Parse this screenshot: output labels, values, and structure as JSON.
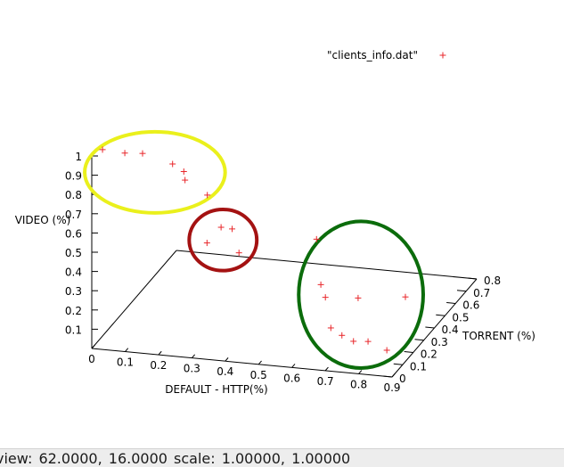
{
  "legend_label": "\"clients_info.dat\"",
  "status": "view: 62.0000, 16.0000 scale: 1.00000, 1.00000",
  "colors": {
    "points": "#e8262a",
    "cluster_yellow": "#eaf01c",
    "cluster_red": "#a41212",
    "cluster_green": "#0b6c0b",
    "axes": "#000000"
  },
  "chart_data": {
    "type": "scatter",
    "dimensions": 3,
    "legend": "\"clients_info.dat\"",
    "legend_placement": "top-right",
    "xlabel": "DEFAULT - HTTP(%)",
    "ylabel": "TORRENT (%)",
    "zlabel": "VIDEO (%)",
    "xlim": [
      0,
      0.9
    ],
    "ylim": [
      0,
      0.8
    ],
    "zlim": [
      0,
      1
    ],
    "x_ticks": [
      "0",
      "0.1",
      "0.2",
      "0.3",
      "0.4",
      "0.5",
      "0.6",
      "0.7",
      "0.8",
      "0.9"
    ],
    "y_ticks": [
      "0",
      "0.1",
      "0.2",
      "0.3",
      "0.4",
      "0.5",
      "0.6",
      "0.7",
      "0.8"
    ],
    "z_ticks": [
      "0.1",
      "0.2",
      "0.3",
      "0.4",
      "0.5",
      "0.6",
      "0.7",
      "0.8",
      "0.9",
      "1"
    ],
    "grid": false,
    "view": {
      "rot_x": 62,
      "rot_z": 16
    },
    "points": [
      {
        "x": 0.01,
        "y": 0.07,
        "z": 0.99
      },
      {
        "x": 0.08,
        "y": 0.06,
        "z": 0.99
      },
      {
        "x": 0.13,
        "y": 0.07,
        "z": 0.99
      },
      {
        "x": 0.22,
        "y": 0.07,
        "z": 0.95
      },
      {
        "x": 0.26,
        "y": 0.05,
        "z": 0.93
      },
      {
        "x": 0.27,
        "y": 0.03,
        "z": 0.9
      },
      {
        "x": 0.34,
        "y": 0.02,
        "z": 0.84
      },
      {
        "x": 0.34,
        "y": 0.15,
        "z": 0.59
      },
      {
        "x": 0.37,
        "y": 0.16,
        "z": 0.58
      },
      {
        "x": 0.32,
        "y": 0.08,
        "z": 0.55
      },
      {
        "x": 0.4,
        "y": 0.13,
        "z": 0.48
      },
      {
        "x": 0.55,
        "y": 0.39,
        "z": 0.41
      },
      {
        "x": 0.62,
        "y": 0.21,
        "z": 0.3
      },
      {
        "x": 0.64,
        "y": 0.19,
        "z": 0.25
      },
      {
        "x": 0.7,
        "y": 0.31,
        "z": 0.18
      },
      {
        "x": 0.81,
        "y": 0.41,
        "z": 0.14
      },
      {
        "x": 0.65,
        "y": 0.21,
        "z": 0.08
      },
      {
        "x": 0.68,
        "y": 0.22,
        "z": 0.04
      },
      {
        "x": 0.74,
        "y": 0.14,
        "z": 0.07
      },
      {
        "x": 0.79,
        "y": 0.12,
        "z": 0.09
      },
      {
        "x": 0.84,
        "y": 0.14,
        "z": 0.04
      }
    ],
    "highlight_clusters": [
      {
        "color": "yellow",
        "points": [
          0,
          1,
          2,
          3,
          4,
          5,
          6
        ]
      },
      {
        "color": "red",
        "points": [
          7,
          8,
          9,
          10
        ]
      },
      {
        "color": "green",
        "points": [
          11,
          12,
          13,
          14,
          15,
          16,
          17,
          18,
          19,
          20
        ]
      }
    ]
  }
}
